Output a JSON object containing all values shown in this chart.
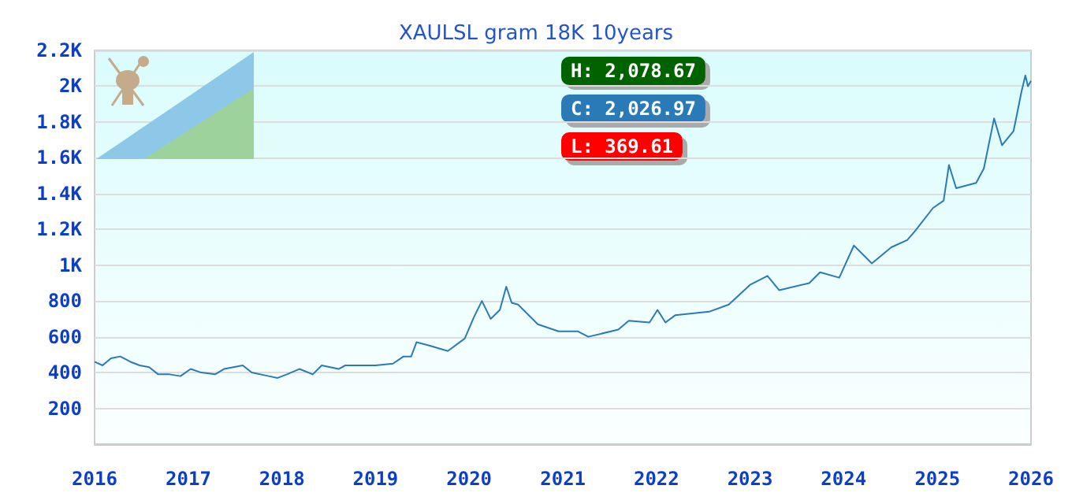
{
  "chart_data": {
    "type": "line",
    "title": "XAULSL gram 18K 10years",
    "annotations": [
      "H: 2,078.67",
      "C: 2,026.97",
      "L: 369.61"
    ],
    "x": [
      "2016-01-01",
      "2016-02-01",
      "2016-03-05",
      "2016-04-10",
      "2016-05-20",
      "2016-06-25",
      "2016-08-01",
      "2016-09-05",
      "2016-10-20",
      "2016-12-01",
      "2017-01-10",
      "2017-02-20",
      "2017-04-15",
      "2017-05-20",
      "2017-08-01",
      "2017-09-05",
      "2017-11-10",
      "2017-12-15",
      "2018-01-20",
      "2018-03-10",
      "2018-05-01",
      "2018-06-05",
      "2018-08-10",
      "2018-09-05",
      "2019-01-01",
      "2019-03-10",
      "2019-04-20",
      "2019-05-20",
      "2019-06-10",
      "2019-08-01",
      "2019-10-10",
      "2019-12-15",
      "2020-01-20",
      "2020-02-20",
      "2020-03-25",
      "2020-04-30",
      "2020-05-25",
      "2020-06-15",
      "2020-07-10",
      "2020-09-25",
      "2020-12-15",
      "2021-03-01",
      "2021-04-10",
      "2021-08-05",
      "2021-09-15",
      "2021-12-05",
      "2022-01-05",
      "2022-02-05",
      "2022-03-15",
      "2022-07-25",
      "2022-10-10",
      "2023-01-01",
      "2023-03-10",
      "2023-04-25",
      "2023-08-20",
      "2023-10-01",
      "2023-12-15",
      "2024-02-10",
      "2024-04-20",
      "2024-07-05",
      "2024-09-05",
      "2024-10-05",
      "2024-12-15",
      "2025-01-25",
      "2025-02-15",
      "2025-03-15",
      "2025-06-01",
      "2025-07-01",
      "2025-08-10",
      "2025-09-10",
      "2025-10-25",
      "2025-11-25",
      "2025-12-10",
      "2025-12-20",
      "2026-01-01"
    ],
    "series": [
      {
        "color": "#2a7ab8",
        "values": [
          460,
          440,
          480,
          490,
          460,
          440,
          430,
          390,
          390,
          380,
          420,
          400,
          390,
          420,
          440,
          400,
          380,
          370,
          390,
          420,
          390,
          440,
          420,
          440,
          440,
          450,
          490,
          490,
          570,
          550,
          520,
          590,
          710,
          800,
          700,
          750,
          880,
          790,
          780,
          670,
          630,
          630,
          600,
          640,
          690,
          680,
          750,
          680,
          720,
          740,
          780,
          890,
          940,
          860,
          900,
          960,
          930,
          1110,
          1010,
          1100,
          1140,
          1190,
          1320,
          1360,
          1560,
          1430,
          1460,
          1540,
          1820,
          1670,
          1750,
          1970,
          2060,
          2000,
          2030
        ]
      }
    ],
    "xlim": [
      "2016-01-01",
      "2026-01-01"
    ],
    "xticks": [
      "2016",
      "2017",
      "2018",
      "2019",
      "2020",
      "2021",
      "2022",
      "2023",
      "2024",
      "2025",
      "2026"
    ],
    "ylim": [
      0,
      2200
    ],
    "yticks": [
      200,
      400,
      600,
      800,
      {
        "value": 1000,
        "label": "1K"
      },
      {
        "value": 1200,
        "label": "1.2K"
      },
      {
        "value": 1400,
        "label": "1.4K"
      },
      {
        "value": 1600,
        "label": "1.6K"
      },
      {
        "value": 1800,
        "label": "1.8K"
      },
      {
        "value": 2000,
        "label": "2K"
      },
      {
        "value": 2200,
        "label": "2.2K"
      }
    ],
    "grid": "y",
    "marker": "none",
    "line_style": "solid"
  }
}
